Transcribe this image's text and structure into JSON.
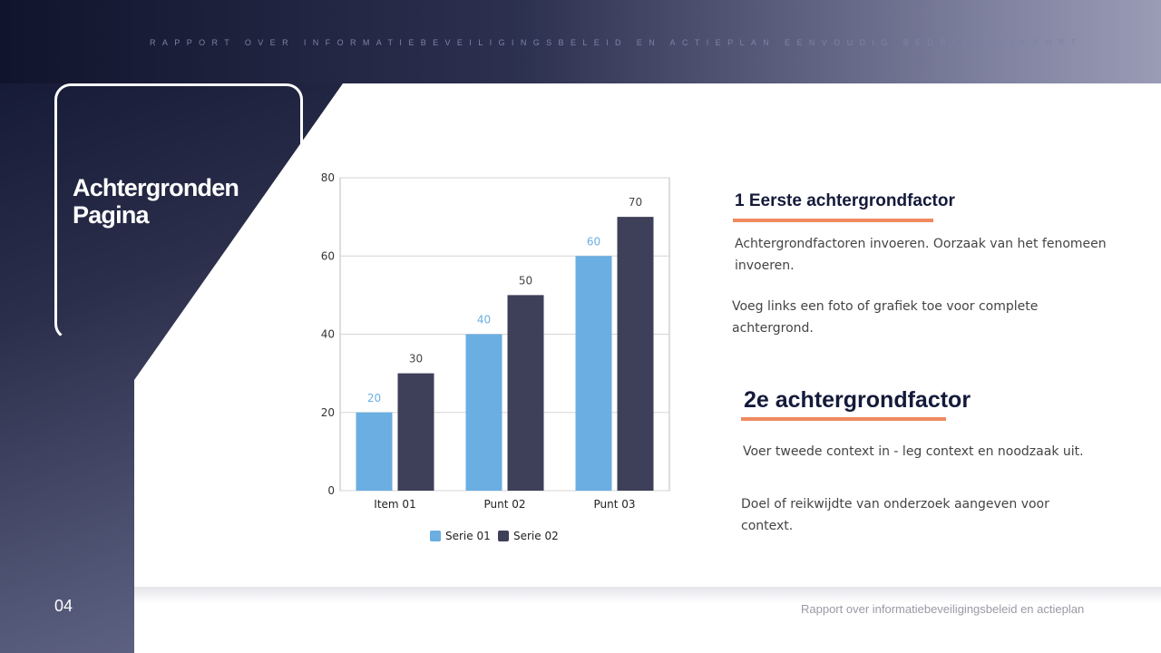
{
  "header": {
    "top_text": "RAPPORT OVER INFORMATIEBEVEILIGINGSBELEID EN ACTIEPLAN EENVOUDIG BEDRIJFSRAPPORT"
  },
  "title": {
    "line1": "Achtergronden",
    "line2": "Pagina"
  },
  "page_number": "04",
  "footer": "Rapport over informatiebeveiligingsbeleid en actieplan",
  "section1": {
    "heading": "1 Eerste achtergrondfactor",
    "p1": "Achtergrondfactoren invoeren. Oorzaak van het fenomeen invoeren.",
    "p2": "Voeg links een foto of grafiek toe voor complete achtergrond."
  },
  "section2": {
    "heading": "2e achtergrondfactor",
    "p1": "Voer tweede context in - leg context en noodzaak uit.",
    "p2": "Doel of reikwijdte van onderzoek aangeven voor context."
  },
  "colors": {
    "accent": "#f08a60",
    "serie1": "#6aaee2",
    "serie2": "#3e3f58"
  },
  "chart_data": {
    "type": "bar",
    "categories": [
      "Item 01",
      "Punt 02",
      "Punt 03"
    ],
    "series": [
      {
        "name": "Serie 01",
        "values": [
          20,
          40,
          60
        ]
      },
      {
        "name": "Serie 02",
        "values": [
          30,
          50,
          70
        ]
      }
    ],
    "ylim": [
      0,
      80
    ],
    "yticks": [
      0,
      20,
      40,
      60,
      80
    ],
    "grid": true,
    "legend": "bottom"
  }
}
